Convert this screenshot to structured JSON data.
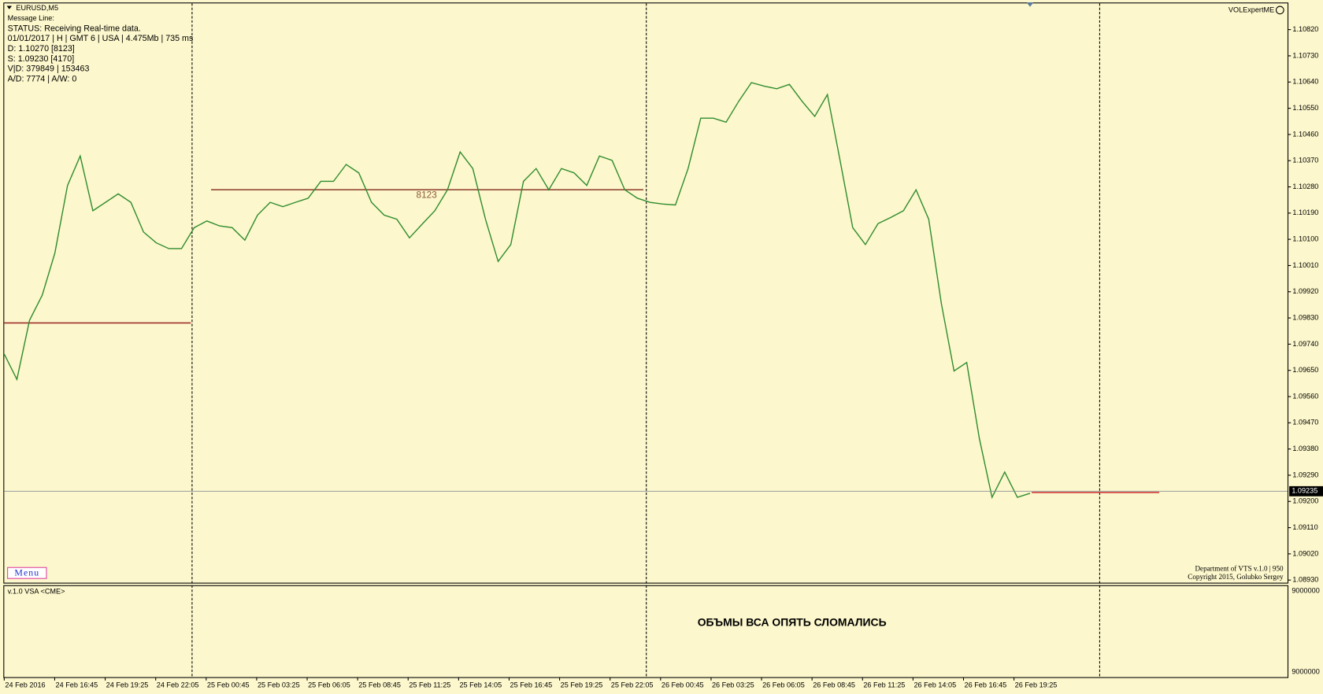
{
  "window": {
    "symbol": "EURUSD,M5",
    "expert": "VOLExpertME"
  },
  "info_panel": {
    "lines": [
      "Message Line:",
      "STATUS:  Receiving Real-time data.",
      "01/01/2017  |  H  | GMT 6 | USA | 4.475Mb | 735 ms",
      "D: 1.10270   [8123]",
      "S: 1.09230   [4170]",
      "V|D: 379849 | 153463",
      "A/D: 7774  | A/W: 0"
    ]
  },
  "level_label": "8123",
  "chart_data": {
    "type": "line",
    "title": "EURUSD,M5",
    "color": "#2e8b2e",
    "values": [
      1.09706,
      1.09619,
      1.09822,
      1.09908,
      1.10053,
      1.10285,
      1.10386,
      1.10198,
      1.10227,
      1.10256,
      1.10227,
      1.10125,
      1.10088,
      1.10068,
      1.10068,
      1.1014,
      1.10163,
      1.10146,
      1.1014,
      1.10097,
      1.10183,
      1.10227,
      1.10212,
      1.10227,
      1.10241,
      1.10299,
      1.10299,
      1.10357,
      1.10328,
      1.10227,
      1.10183,
      1.10169,
      1.10105,
      1.10152,
      1.10198,
      1.1027,
      1.104,
      1.10343,
      1.10169,
      1.10024,
      1.10082,
      1.10299,
      1.10343,
      1.1027,
      1.10343,
      1.10328,
      1.10285,
      1.10386,
      1.10371,
      1.1027,
      1.10241,
      1.10227,
      1.10221,
      1.10218,
      1.10343,
      1.10516,
      1.10516,
      1.10502,
      1.10574,
      1.10638,
      1.10626,
      1.10617,
      1.10632,
      1.10574,
      1.10522,
      1.10597,
      1.10371,
      1.1014,
      1.10082,
      1.10154,
      1.10175,
      1.10198,
      1.1027,
      1.10169,
      1.09879,
      1.09648,
      1.09677,
      1.09416,
      1.09214,
      1.09301,
      1.09214,
      1.09228
    ],
    "ylim": [
      1.08921,
      1.10913
    ],
    "yticks": [
      {
        "value": 1.1082,
        "label": "1.10820"
      },
      {
        "value": 1.1073,
        "label": "1.10730"
      },
      {
        "value": 1.1064,
        "label": "1.10640"
      },
      {
        "value": 1.1055,
        "label": "1.10550"
      },
      {
        "value": 1.1046,
        "label": "1.10460"
      },
      {
        "value": 1.1037,
        "label": "1.10370"
      },
      {
        "value": 1.1028,
        "label": "1.10280"
      },
      {
        "value": 1.1019,
        "label": "1.10190"
      },
      {
        "value": 1.101,
        "label": "1.10100"
      },
      {
        "value": 1.1001,
        "label": "1.10010"
      },
      {
        "value": 1.0992,
        "label": "1.09920"
      },
      {
        "value": 1.0983,
        "label": "1.09830"
      },
      {
        "value": 1.0974,
        "label": "1.09740"
      },
      {
        "value": 1.0965,
        "label": "1.09650"
      },
      {
        "value": 1.0956,
        "label": "1.09560"
      },
      {
        "value": 1.0947,
        "label": "1.09470"
      },
      {
        "value": 1.0938,
        "label": "1.09380"
      },
      {
        "value": 1.0929,
        "label": "1.09290"
      },
      {
        "value": 1.092,
        "label": "1.09200"
      },
      {
        "value": 1.0911,
        "label": "1.09110"
      },
      {
        "value": 1.0902,
        "label": "1.09020"
      },
      {
        "value": 1.0893,
        "label": "1.08930"
      }
    ],
    "current_price": {
      "value": 1.09235,
      "label": "1.09235"
    },
    "xtick_labels": [
      "24 Feb 2016",
      "24 Feb 16:45",
      "24 Feb 19:25",
      "24 Feb 22:05",
      "25 Feb 00:45",
      "25 Feb 03:25",
      "25 Feb 06:05",
      "25 Feb 08:45",
      "25 Feb 11:25",
      "25 Feb 14:05",
      "25 Feb 16:45",
      "25 Feb 19:25",
      "25 Feb 22:05",
      "26 Feb 00:45",
      "26 Feb 03:25",
      "26 Feb 06:05",
      "26 Feb 08:45",
      "26 Feb 11:25",
      "26 Feb 14:05",
      "26 Feb 16:45",
      "26 Feb 19:25"
    ]
  },
  "indicator": {
    "name": "v.1.0 VSA <CME>",
    "note": "ОБЪМЫ ВСА ОПЯТЬ СЛОМАЛИСЬ",
    "axis_labels": [
      "9000000",
      "9000000"
    ]
  },
  "footer": {
    "lines": [
      "Department of VTS  v.1.0 | 950",
      "Copyright 2015, Golubko Sergey"
    ]
  },
  "menu": "Menu"
}
